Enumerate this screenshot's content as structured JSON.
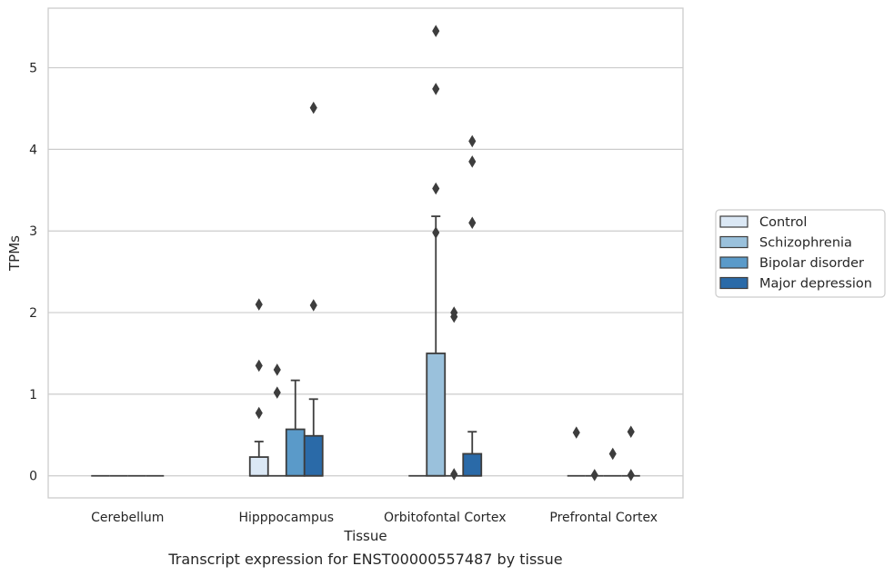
{
  "caption": "Transcript expression for ENST00000557487 by tissue",
  "chart_data": {
    "type": "box",
    "xlabel": "Tissue",
    "ylabel": "TPMs",
    "ylim": [
      -0.27,
      5.73
    ],
    "yticks": [
      0,
      1,
      2,
      3,
      4,
      5
    ],
    "grid": "horizontal",
    "legend_position": "right",
    "categories": [
      "Cerebellum",
      "Hipppocampus",
      "Orbitofontal Cortex",
      "Prefrontal Cortex"
    ],
    "series": [
      {
        "name": "Control",
        "color": "#dbe8f5",
        "boxes": [
          {
            "q1": 0,
            "median": 0,
            "q3": 0,
            "whislo": 0,
            "whishi": 0,
            "fliers": []
          },
          {
            "q1": 0,
            "median": 0,
            "q3": 0.23,
            "whislo": 0,
            "whishi": 0.42,
            "fliers": [
              0.77,
              1.35,
              2.1
            ]
          },
          {
            "q1": 0,
            "median": 0,
            "q3": 0,
            "whislo": 0,
            "whishi": 0,
            "fliers": []
          },
          {
            "q1": 0,
            "median": 0,
            "q3": 0,
            "whislo": 0,
            "whishi": 0,
            "fliers": [
              0.53
            ]
          }
        ]
      },
      {
        "name": "Schizophrenia",
        "color": "#9ac1dc",
        "boxes": [
          {
            "q1": 0,
            "median": 0,
            "q3": 0,
            "whislo": 0,
            "whishi": 0,
            "fliers": []
          },
          {
            "q1": 0,
            "median": 0,
            "q3": 0,
            "whislo": 0,
            "whishi": 0,
            "fliers": [
              1.02,
              1.3
            ]
          },
          {
            "q1": 0,
            "median": 0,
            "q3": 1.5,
            "whislo": 0,
            "whishi": 3.18,
            "fliers": [
              2.98,
              3.52,
              4.74,
              5.45
            ]
          },
          {
            "q1": 0,
            "median": 0,
            "q3": 0,
            "whislo": 0,
            "whishi": 0,
            "fliers": [
              0.01
            ]
          }
        ]
      },
      {
        "name": "Bipolar disorder",
        "color": "#5a9ac9",
        "boxes": [
          {
            "q1": 0,
            "median": 0,
            "q3": 0,
            "whislo": 0,
            "whishi": 0,
            "fliers": []
          },
          {
            "q1": 0,
            "median": 0,
            "q3": 0.57,
            "whislo": 0,
            "whishi": 1.17,
            "fliers": []
          },
          {
            "q1": 0,
            "median": 0,
            "q3": 0,
            "whislo": 0,
            "whishi": 0,
            "fliers": [
              0.02,
              1.95,
              2.0
            ]
          },
          {
            "q1": 0,
            "median": 0,
            "q3": 0,
            "whislo": 0,
            "whishi": 0,
            "fliers": [
              0.27
            ]
          }
        ]
      },
      {
        "name": "Major depression",
        "color": "#2a6aa8",
        "boxes": [
          {
            "q1": 0,
            "median": 0,
            "q3": 0,
            "whislo": 0,
            "whishi": 0,
            "fliers": []
          },
          {
            "q1": 0,
            "median": 0,
            "q3": 0.49,
            "whislo": 0,
            "whishi": 0.94,
            "fliers": [
              2.09,
              4.51
            ]
          },
          {
            "q1": 0,
            "median": 0,
            "q3": 0.27,
            "whislo": 0,
            "whishi": 0.54,
            "fliers": [
              3.1,
              3.85,
              4.1
            ]
          },
          {
            "q1": 0,
            "median": 0,
            "q3": 0,
            "whislo": 0,
            "whishi": 0,
            "fliers": [
              0.01,
              0.54
            ]
          }
        ]
      }
    ]
  }
}
